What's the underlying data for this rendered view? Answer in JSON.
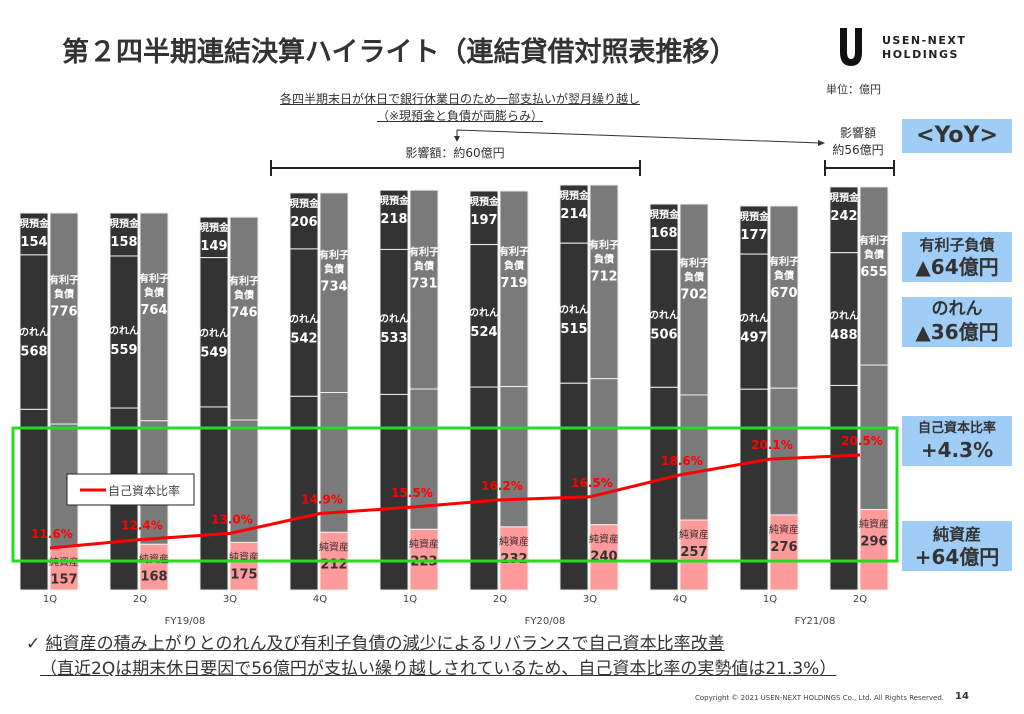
{
  "header": {
    "title": "第２四半期連結決算ハイライト（連結貸借対照表推移）",
    "logo_text_line1": "USEN-NEXT",
    "logo_text_line2": "HOLDINGS",
    "unit": "単位：億円"
  },
  "annotations": {
    "note_line1": "各四半期末日が休日で銀行休業日のため一部支払いが翌月繰り越し",
    "note_line2": "（※現預金と負債が両膨らみ）",
    "impact_range": "影響額：約60億円",
    "impact_latest_line1": "影響額",
    "impact_latest_line2": "約56億円"
  },
  "yoy": {
    "title": "<YoY>",
    "debt_label": "有利子負債",
    "debt_value": "▲64億円",
    "goodwill_label": "のれん",
    "goodwill_value": "▲36億円",
    "equity_ratio_label": "自己資本比率",
    "equity_ratio_value": "+4.3%",
    "net_assets_label": "純資産",
    "net_assets_value": "+64億円"
  },
  "chart_data": {
    "type": "bar",
    "subtype": "paired stacked bar with line overlay",
    "unit": "億円",
    "categories": [
      "1Q",
      "2Q",
      "3Q",
      "4Q",
      "1Q",
      "2Q",
      "3Q",
      "4Q",
      "1Q",
      "2Q"
    ],
    "fiscal_years": [
      {
        "label": "FY19/08",
        "quarters": [
          "1Q",
          "2Q",
          "3Q",
          "4Q"
        ]
      },
      {
        "label": "FY20/08",
        "quarters": [
          "1Q",
          "2Q",
          "3Q",
          "4Q"
        ]
      },
      {
        "label": "FY21/08",
        "quarters": [
          "1Q",
          "2Q"
        ]
      }
    ],
    "assets_bar": {
      "segments": [
        {
          "name": "現預金",
          "color": "#333333",
          "values": [
            154,
            158,
            149,
            206,
            218,
            197,
            214,
            168,
            177,
            242
          ]
        },
        {
          "name": "のれん",
          "color": "#333333",
          "values": [
            568,
            559,
            549,
            542,
            533,
            524,
            515,
            506,
            497,
            488
          ]
        },
        {
          "name": "",
          "color": "#333333",
          "values": [
            664,
            669,
            673,
            712,
            719,
            746,
            760,
            745,
            738,
            752
          ]
        }
      ]
    },
    "liabilities_bar": {
      "segments": [
        {
          "name": "有利子負債",
          "label_lines": [
            "有利子",
            "負債"
          ],
          "color": "#7a7a7a",
          "values": [
            776,
            764,
            746,
            734,
            731,
            719,
            712,
            702,
            670,
            655
          ]
        },
        {
          "name": "",
          "color": "#7a7a7a",
          "values": [
            453,
            454,
            450,
            514,
            516,
            516,
            537,
            460,
            466,
            531
          ]
        },
        {
          "name": "純資産",
          "color": "#ff9a9a",
          "values": [
            157,
            168,
            175,
            212,
            223,
            232,
            240,
            257,
            276,
            296
          ]
        }
      ]
    },
    "line": {
      "name": "自己資本比率",
      "color": "#ff0000",
      "values": [
        11.6,
        12.4,
        13.0,
        14.9,
        15.5,
        16.2,
        16.5,
        18.6,
        20.1,
        20.5
      ],
      "labels": [
        "11.6%",
        "12.4%",
        "13.0%",
        "14.9%",
        "15.5%",
        "16.2%",
        "16.5%",
        "18.6%",
        "20.1%",
        "20.5%"
      ]
    },
    "legend": {
      "entries": [
        "自己資本比率"
      ],
      "placement": "bottom-left"
    },
    "highlight_box_color": "#22dd22",
    "grid": false
  },
  "footer": {
    "check_mark": "✓",
    "line1": "純資産の積み上がりとのれん及び有利子負債の減少によるリバランスで自己資本比率改善",
    "line2": "（直近2Qは期末休日要因で56億円が支払い繰り越しされているため、自己資本比率の実勢値は21.3%）",
    "copyright": "Copyright © 2021 USEN-NEXT HOLDINGS Co., Ltd. All Rights Reserved.",
    "page_number": "14"
  }
}
